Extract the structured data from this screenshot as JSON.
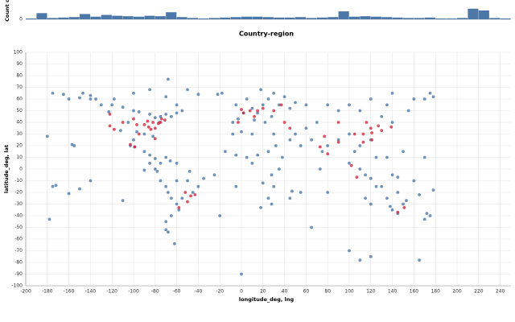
{
  "histogram": {
    "y_label": "Count c",
    "bins": [
      -200,
      -190,
      -180,
      -170,
      -160,
      -150,
      -140,
      -130,
      -120,
      -110,
      -100,
      -90,
      -80,
      -70,
      -60,
      -50,
      -40,
      -30,
      -20,
      -10,
      0,
      10,
      20,
      30,
      40,
      50,
      60,
      70,
      80,
      90,
      100,
      110,
      120,
      130,
      140,
      150,
      160,
      170,
      180,
      190,
      200,
      210,
      220,
      230,
      240,
      250
    ],
    "counts": [
      2,
      14,
      3,
      4,
      5,
      12,
      6,
      10,
      8,
      7,
      6,
      8,
      7,
      16,
      5,
      3,
      2,
      3,
      4,
      5,
      6,
      6,
      5,
      4,
      4,
      5,
      3,
      4,
      5,
      18,
      6,
      7,
      6,
      5,
      4,
      3,
      3,
      4,
      2,
      2,
      3,
      24,
      20,
      3,
      2
    ],
    "color": "#4c78a8",
    "ylim": [
      0,
      40
    ],
    "yticks": [
      0
    ]
  },
  "chart_data": {
    "type": "scatter",
    "title": "Country-region",
    "x_label": "longitude_deg, lng",
    "y_label": "latitude_deg, lat",
    "xlim": [
      -200,
      250
    ],
    "ylim": [
      -100,
      100
    ],
    "xticks": [
      -200,
      -180,
      -160,
      -140,
      -120,
      -100,
      -80,
      -60,
      -40,
      -20,
      0,
      20,
      40,
      60,
      80,
      100,
      120,
      140,
      160,
      180,
      200,
      220,
      240
    ],
    "yticks": [
      -100,
      -90,
      -80,
      -70,
      -60,
      -50,
      -40,
      -30,
      -20,
      -10,
      0,
      10,
      20,
      30,
      40,
      50,
      60,
      70,
      80,
      90,
      100
    ],
    "grid": true,
    "series": [
      {
        "color": "#4c78a8",
        "x": [
          -150,
          -147,
          -160,
          -165,
          -135,
          -123,
          -120,
          -110,
          -100,
          -95,
          -85,
          -80,
          -75,
          -70,
          -65,
          -60,
          -105,
          -112,
          -97,
          -90,
          -82,
          -100,
          -103,
          -99,
          -90,
          -85,
          -80,
          -76,
          -118,
          -100,
          -85,
          -70,
          -60,
          -55,
          -130,
          -140,
          -155,
          -157,
          -68,
          -40,
          -50,
          -22,
          -18,
          -75,
          -70,
          -66,
          -60,
          -78,
          -75,
          -70,
          -68,
          -65,
          -60,
          -58,
          -65,
          -70,
          -70,
          -68,
          -50,
          -45,
          -40,
          -35,
          -55,
          -60,
          -48,
          -8,
          -3,
          2,
          10,
          15,
          20,
          25,
          30,
          18,
          5,
          -5,
          12,
          22,
          28,
          35,
          45,
          50,
          60,
          40,
          -15,
          -5,
          5,
          10,
          15,
          25,
          32,
          38,
          35,
          28,
          20,
          30,
          25,
          18,
          28,
          47,
          45,
          10,
          0,
          -8,
          30,
          70,
          80,
          90,
          100,
          110,
          120,
          135,
          140,
          160,
          175,
          130,
          140,
          100,
          90,
          80,
          75,
          105,
          110,
          120,
          125,
          100,
          110,
          115,
          120,
          140,
          145,
          60,
          50,
          45,
          55,
          65,
          170,
          178,
          -175,
          115,
          120,
          130,
          135,
          140,
          145,
          150,
          153,
          145,
          138,
          170,
          172,
          175,
          178,
          165,
          -150,
          -160,
          -175,
          -140,
          -172,
          160,
          125,
          -178,
          -110,
          -85,
          -80,
          -90,
          100,
          110,
          120,
          165,
          -62,
          0,
          -20,
          -5,
          -25,
          80,
          55,
          73,
          65,
          -180,
          150,
          135,
          170,
          -140,
          155
        ],
        "y": [
          61,
          65,
          60,
          64,
          60,
          49,
          55,
          53,
          50,
          49,
          47,
          44,
          45,
          47,
          45,
          48,
          40,
          33,
          32,
          30,
          28,
          25,
          20,
          19,
          15,
          12,
          9,
          40,
          60,
          65,
          68,
          62,
          55,
          50,
          55,
          63,
          20,
          21,
          77,
          64,
          68,
          64,
          65,
          5,
          10,
          7,
          5,
          -2,
          -10,
          -15,
          -20,
          -25,
          -30,
          -35,
          -40,
          -45,
          -52,
          -54,
          -10,
          -20,
          -15,
          -8,
          -25,
          -10,
          -2,
          40,
          43,
          48,
          52,
          48,
          55,
          60,
          65,
          68,
          60,
          55,
          42,
          40,
          45,
          55,
          52,
          57,
          55,
          62,
          15,
          12,
          10,
          5,
          12,
          15,
          20,
          10,
          0,
          -5,
          -12,
          -15,
          -25,
          -33,
          -30,
          -19,
          -25,
          30,
          32,
          30,
          30,
          40,
          55,
          50,
          55,
          50,
          60,
          55,
          65,
          60,
          65,
          45,
          40,
          30,
          25,
          20,
          15,
          15,
          20,
          25,
          10,
          5,
          0,
          -5,
          -8,
          -5,
          -7,
          35,
          30,
          25,
          20,
          25,
          60,
          62,
          65,
          -25,
          -30,
          -15,
          -25,
          -35,
          -38,
          -30,
          -27,
          -20,
          -32,
          -43,
          -38,
          -40,
          -18,
          -22,
          -17,
          -21,
          -15,
          -10,
          -14,
          -10,
          -15,
          -43,
          -27,
          5,
          0,
          -1,
          -70,
          -78,
          -75,
          -78,
          -64,
          -90,
          -40,
          -15,
          -5,
          -20,
          -20,
          0,
          -50,
          28,
          15,
          10,
          10,
          60,
          50
        ]
      },
      {
        "color": "#d62740",
        "x": [
          -75,
          -80,
          -84,
          -87,
          -90,
          -95,
          -118,
          -122,
          -122,
          -77,
          -82,
          -86,
          -74,
          -71,
          -97,
          -110,
          -80,
          -100,
          0,
          2,
          8,
          12,
          -3,
          15,
          20,
          30,
          37,
          -47,
          -43,
          -50,
          -52,
          -58,
          77,
          73,
          80,
          90,
          105,
          113,
          120,
          121,
          116,
          127,
          139,
          130,
          113,
          121,
          107,
          102,
          90,
          45,
          40,
          151,
          145,
          -99,
          -103
        ],
        "y": [
          40,
          35,
          34,
          41,
          38,
          30,
          34,
          37,
          47,
          39,
          40,
          36,
          43,
          42,
          38,
          40,
          26,
          43,
          51,
          48,
          50,
          45,
          40,
          50,
          52,
          50,
          55,
          -23,
          -22,
          -28,
          -20,
          -33,
          28,
          19,
          13,
          23,
          30,
          30,
          35,
          31,
          40,
          37,
          36,
          33,
          23,
          25,
          -7,
          3,
          40,
          35,
          40,
          -33,
          -37,
          19,
          21
        ]
      }
    ]
  }
}
